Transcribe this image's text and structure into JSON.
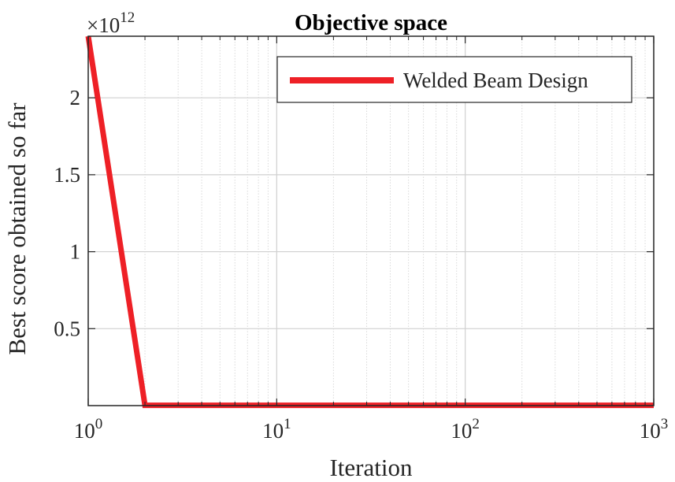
{
  "chart_data": {
    "type": "line",
    "title": "Objective space",
    "xlabel": "Iteration",
    "ylabel": "Best score obtained so far",
    "x_scale": "log",
    "xlim": [
      1,
      1000
    ],
    "ylim": [
      0,
      2400000000000.0
    ],
    "y_multiplier_base": "×10",
    "y_multiplier_exp": "12",
    "x_ticks": [
      {
        "value": 1,
        "base": "10",
        "exp": "0"
      },
      {
        "value": 10,
        "base": "10",
        "exp": "1"
      },
      {
        "value": 100,
        "base": "10",
        "exp": "2"
      },
      {
        "value": 1000,
        "base": "10",
        "exp": "3"
      }
    ],
    "y_ticks": [
      {
        "value": 500000000000.0,
        "label": "0.5"
      },
      {
        "value": 1000000000000.0,
        "label": "1"
      },
      {
        "value": 1500000000000.0,
        "label": "1.5"
      },
      {
        "value": 2000000000000.0,
        "label": "2"
      }
    ],
    "grid": true,
    "minor_grid_x": true,
    "legend_position": "top-right",
    "series": [
      {
        "name": "Welded Beam Design",
        "color": "#ee2026",
        "x": [
          1,
          2,
          3,
          5,
          10,
          20,
          50,
          100,
          200,
          500,
          1000
        ],
        "y": [
          2400000000000.0,
          2000000000.0,
          1800000000.0,
          1800000000.0,
          1800000000.0,
          1800000000.0,
          1800000000.0,
          1800000000.0,
          1800000000.0,
          1800000000.0,
          1800000000.0
        ]
      }
    ]
  }
}
